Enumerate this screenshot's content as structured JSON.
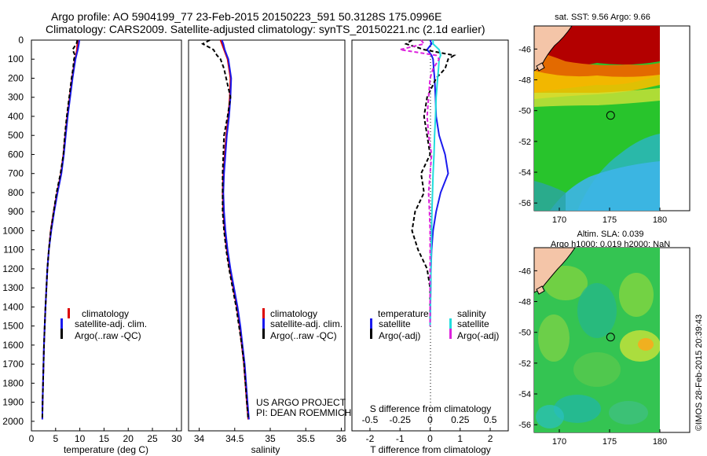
{
  "header": {
    "line1": "Argo profile: AO 5904199_77 23-Feb-2015 20150223_591 50.3128S 175.0996E",
    "line2": "Climatology: CARS2009. Satellite-adjusted climatology: synTS_20150221.nc (2.1d earlier)"
  },
  "colors": {
    "climatology": "#dd0000",
    "satellite": "#1a1aee",
    "argo": "#000000",
    "salinity_satellite": "#22dddd",
    "salinity_argo": "#dd22dd",
    "land": "#f4c5a8"
  },
  "chart_data": [
    {
      "type": "line",
      "xlabel": "temperature (deg C)",
      "ylabel": "",
      "xlim": [
        0,
        31
      ],
      "ylim": [
        2050,
        0
      ],
      "x_ticks": [
        0,
        5,
        10,
        15,
        20,
        25,
        30
      ],
      "y_ticks": [
        0,
        100,
        200,
        300,
        400,
        500,
        600,
        700,
        800,
        900,
        1000,
        1100,
        1200,
        1300,
        1400,
        1500,
        1600,
        1700,
        1800,
        1900,
        2000
      ],
      "depth": [
        0,
        20,
        50,
        80,
        100,
        150,
        200,
        300,
        400,
        500,
        600,
        700,
        800,
        900,
        1000,
        1100,
        1200,
        1300,
        1400,
        1500,
        1600,
        1700,
        1800,
        1900,
        1990
      ],
      "series": [
        {
          "name": "climatology",
          "style": "solid",
          "values": [
            9.6,
            9.5,
            9.4,
            9.2,
            9.0,
            8.7,
            8.4,
            7.9,
            7.4,
            7.0,
            6.6,
            6.1,
            5.3,
            4.6,
            4.0,
            3.6,
            3.3,
            3.1,
            2.9,
            2.75,
            2.6,
            2.5,
            2.4,
            2.3,
            2.25
          ]
        },
        {
          "name": "satellite-adj. clim.",
          "style": "solid",
          "values": [
            9.9,
            9.8,
            9.6,
            9.3,
            9.1,
            8.8,
            8.5,
            8.0,
            7.5,
            7.1,
            6.7,
            6.2,
            5.4,
            4.7,
            4.1,
            3.6,
            3.3,
            3.1,
            2.9,
            2.75,
            2.6,
            2.5,
            2.4,
            2.3,
            2.25
          ]
        },
        {
          "name": "Argo(..raw -QC)",
          "style": "dashed",
          "values": [
            9.5,
            9.3,
            8.5,
            9.0,
            8.8,
            8.6,
            8.3,
            7.8,
            7.3,
            6.9,
            6.6,
            6.0,
            5.2,
            4.6,
            4.0,
            3.6,
            3.3,
            3.1,
            2.9,
            2.75,
            2.6,
            2.5,
            2.4,
            2.3,
            2.25
          ]
        }
      ],
      "legend": [
        "climatology",
        "satellite-adj. clim.",
        "Argo(..raw -QC)"
      ]
    },
    {
      "type": "line",
      "xlabel": "salinity",
      "ylabel": "",
      "xlim": [
        33.85,
        36.05
      ],
      "ylim": [
        2050,
        0
      ],
      "x_ticks": [
        34,
        34.5,
        35,
        35.5,
        36
      ],
      "depth": [
        0,
        20,
        50,
        80,
        100,
        150,
        200,
        300,
        400,
        500,
        600,
        700,
        800,
        900,
        1000,
        1100,
        1200,
        1300,
        1400,
        1500,
        1600,
        1700,
        1800,
        1900,
        1990
      ],
      "series": [
        {
          "name": "climatology",
          "style": "solid",
          "values": [
            34.3,
            34.32,
            34.35,
            34.38,
            34.4,
            34.42,
            34.44,
            34.43,
            34.41,
            34.38,
            34.36,
            34.34,
            34.33,
            34.34,
            34.36,
            34.39,
            34.43,
            34.48,
            34.53,
            34.57,
            34.6,
            34.63,
            34.65,
            34.67,
            34.69
          ]
        },
        {
          "name": "satellite-adj. clim.",
          "style": "solid",
          "values": [
            34.32,
            34.34,
            34.36,
            34.39,
            34.41,
            34.43,
            34.45,
            34.44,
            34.42,
            34.39,
            34.37,
            34.35,
            34.34,
            34.35,
            34.37,
            34.4,
            34.44,
            34.49,
            34.54,
            34.58,
            34.61,
            34.64,
            34.66,
            34.68,
            34.7
          ]
        },
        {
          "name": "Argo(..raw -QC)",
          "style": "dashed",
          "values": [
            34.15,
            34.05,
            34.2,
            34.25,
            34.3,
            34.35,
            34.38,
            34.44,
            34.4,
            34.35,
            34.34,
            34.33,
            34.33,
            34.33,
            34.35,
            34.38,
            34.42,
            34.47,
            34.52,
            34.56,
            34.6,
            34.63,
            34.65,
            34.67,
            34.69
          ]
        }
      ],
      "legend": [
        "climatology",
        "satellite-adj. clim.",
        "Argo(..raw -QC)"
      ],
      "annotation": [
        "US ARGO PROJECT",
        "PI: DEAN ROEMMICH"
      ]
    },
    {
      "type": "line",
      "xlabel": "T difference from climatology",
      "ylabel": "",
      "xlim": [
        -2.6,
        2.6
      ],
      "ylim": [
        2050,
        0
      ],
      "x_ticks": [
        -2,
        -1,
        0,
        1,
        2
      ],
      "top_ticks": [
        "-0.5",
        "-0.25",
        "0",
        "0.25",
        "0.5"
      ],
      "top_label": "S difference from climatology",
      "depth": [
        0,
        20,
        50,
        80,
        100,
        150,
        200,
        300,
        400,
        500,
        600,
        700,
        800,
        900,
        1000,
        1100,
        1200,
        1300,
        1400,
        1500
      ],
      "series": [
        {
          "name": "temperature satellite",
          "style": "solid",
          "values": [
            0.0,
            0.05,
            -0.1,
            0.05,
            0.1,
            0.12,
            0.15,
            0.18,
            0.2,
            0.3,
            0.5,
            0.6,
            0.35,
            0.2,
            0.1,
            0.05,
            0.03,
            0.02,
            0.01,
            0.0
          ]
        },
        {
          "name": "temperature Argo(-adj)",
          "style": "dashed",
          "values": [
            -0.6,
            -0.8,
            -0.2,
            0.8,
            0.6,
            0.5,
            0.2,
            -0.1,
            -0.2,
            -0.1,
            0.0,
            -0.3,
            -0.2,
            -0.5,
            -0.6,
            -0.4,
            -0.1,
            0.0,
            0.0,
            0.0
          ]
        },
        {
          "name": "salinity satellite",
          "style": "solid",
          "values": [
            0.1,
            0.1,
            0.3,
            0.35,
            0.3,
            0.28,
            0.25,
            0.2,
            0.18,
            0.15,
            0.13,
            0.1,
            0.08,
            0.06,
            0.05,
            0.04,
            0.03,
            0.02,
            0.01,
            0.0
          ]
        },
        {
          "name": "salinity Argo(-adj)",
          "style": "dashed",
          "values": [
            -0.3,
            -0.2,
            -1.0,
            0.2,
            0.3,
            0.1,
            0.0,
            -0.05,
            -0.1,
            -0.05,
            0.05,
            0.0,
            -0.05,
            -0.02,
            0.0,
            0.0,
            0.0,
            0.0,
            0.0,
            0.0
          ]
        }
      ],
      "legend_headers": [
        "temperature",
        "salinity"
      ],
      "legend": [
        "satellite",
        "Argo(-adj)",
        "satellite",
        "Argo(-adj)"
      ]
    },
    {
      "type": "heatmap",
      "title": "sat. SST: 9.56 Argo: 9.66",
      "xlim": [
        167.5,
        180
      ],
      "ylim": [
        -56.5,
        -44.5
      ],
      "x_ticks": [
        170,
        175,
        180
      ],
      "y_ticks": [
        -46,
        -48,
        -50,
        -52,
        -54,
        -56
      ],
      "marker": {
        "lon": 175.1,
        "lat": -50.31
      }
    },
    {
      "type": "heatmap",
      "title": "Altim. SLA: 0.039",
      "subtitle": "Argo h1000: 0.019 h2000: NaN",
      "xlim": [
        167.5,
        180
      ],
      "ylim": [
        -56.5,
        -44.5
      ],
      "x_ticks": [
        170,
        175,
        180
      ],
      "y_ticks": [
        -46,
        -48,
        -50,
        -52,
        -54,
        -56
      ],
      "marker": {
        "lon": 175.1,
        "lat": -50.31
      }
    }
  ],
  "footer": {
    "credit": "©IMOS 28-Feb-2015 20:39:43"
  }
}
